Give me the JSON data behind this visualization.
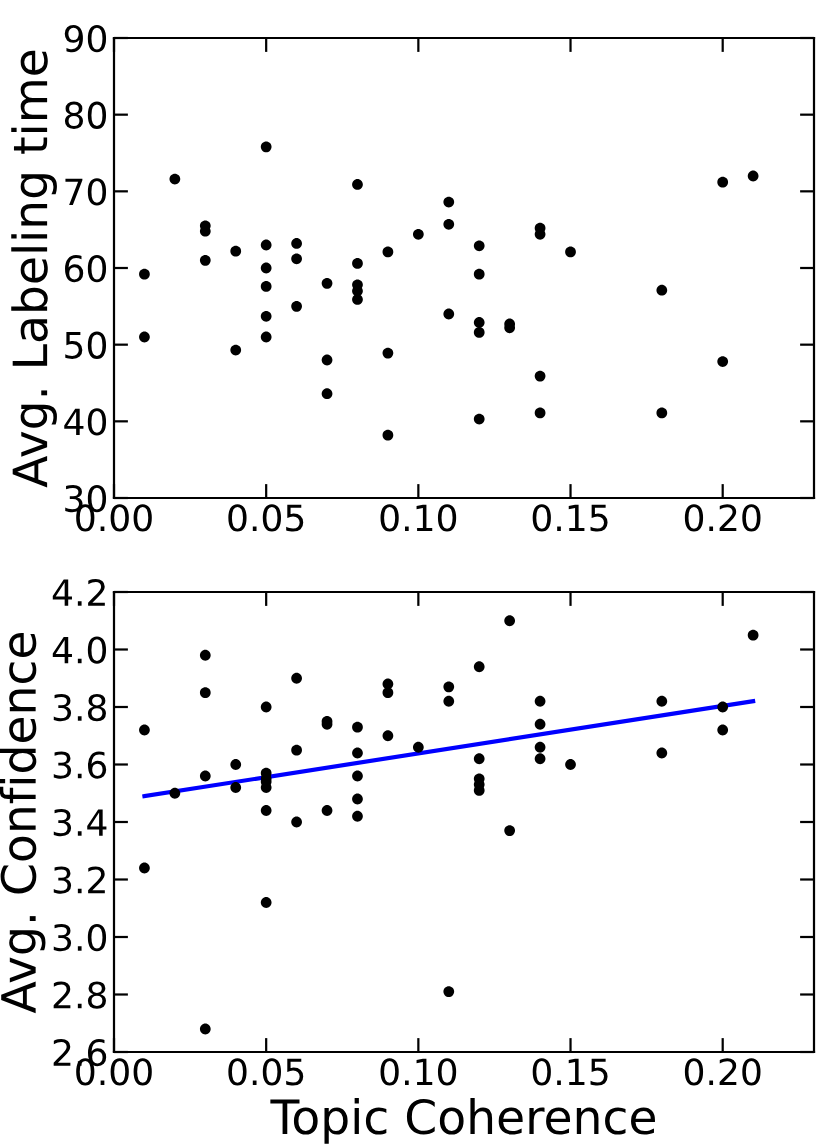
{
  "chart_data": [
    {
      "type": "scatter",
      "ylabel": "Avg. Labeling time",
      "xlim": [
        0,
        0.23
      ],
      "xticks": [
        {
          "value": 0,
          "label": "0.00"
        },
        {
          "value": 0.05,
          "label": "0.05"
        },
        {
          "value": 0.1,
          "label": "0.10"
        },
        {
          "value": 0.15,
          "label": "0.15"
        },
        {
          "value": 0.2,
          "label": "0.20"
        }
      ],
      "ylim": [
        30,
        90
      ],
      "yticks": [
        30,
        40,
        50,
        60,
        70,
        80,
        90
      ],
      "grid": false,
      "marker": "circle",
      "series": [
        {
          "color": "#000000",
          "x": [
            0.01,
            0.01,
            0.02,
            0.03,
            0.03,
            0.03,
            0.04,
            0.04,
            0.05,
            0.05,
            0.05,
            0.05,
            0.05,
            0.05,
            0.06,
            0.06,
            0.06,
            0.07,
            0.07,
            0.07,
            0.08,
            0.08,
            0.08,
            0.08,
            0.08,
            0.09,
            0.09,
            0.09,
            0.1,
            0.11,
            0.11,
            0.11,
            0.12,
            0.12,
            0.12,
            0.12,
            0.12,
            0.13,
            0.13,
            0.14,
            0.14,
            0.14,
            0.14,
            0.15,
            0.18,
            0.18,
            0.2,
            0.2,
            0.21
          ],
          "values": [
            59.2,
            51.0,
            71.6,
            65.5,
            64.8,
            61.0,
            62.2,
            49.3,
            75.8,
            63.0,
            60.0,
            57.6,
            53.7,
            51.0,
            63.2,
            61.2,
            55.0,
            58.0,
            48.0,
            43.6,
            70.9,
            60.6,
            57.8,
            57.0,
            55.9,
            62.1,
            48.9,
            38.2,
            64.4,
            68.6,
            65.7,
            54.0,
            62.9,
            59.2,
            52.9,
            51.6,
            40.3,
            52.7,
            52.2,
            65.2,
            64.4,
            45.9,
            41.1,
            62.1,
            57.1,
            41.1,
            71.2,
            47.8,
            72.0
          ]
        }
      ]
    },
    {
      "type": "scatter",
      "xlabel": "Topic Coherence",
      "ylabel": "Avg. Confidence",
      "xlim": [
        0,
        0.23
      ],
      "xticks": [
        {
          "value": 0,
          "label": "0.00"
        },
        {
          "value": 0.05,
          "label": "0.05"
        },
        {
          "value": 0.1,
          "label": "0.10"
        },
        {
          "value": 0.15,
          "label": "0.15"
        },
        {
          "value": 0.2,
          "label": "0.20"
        }
      ],
      "ylim": [
        2.6,
        4.2
      ],
      "yticks": [
        2.6,
        2.8,
        {
          "value": 3.0,
          "label": "3.0"
        },
        3.2,
        3.4,
        3.6,
        3.8,
        {
          "value": 4.0,
          "label": "4.0"
        },
        4.2
      ],
      "grid": false,
      "marker": "circle",
      "series": [
        {
          "color": "#000000",
          "x": [
            0.01,
            0.01,
            0.02,
            0.03,
            0.03,
            0.03,
            0.03,
            0.04,
            0.04,
            0.05,
            0.05,
            0.05,
            0.05,
            0.05,
            0.05,
            0.05,
            0.06,
            0.06,
            0.06,
            0.07,
            0.07,
            0.07,
            0.08,
            0.08,
            0.08,
            0.08,
            0.08,
            0.09,
            0.09,
            0.09,
            0.1,
            0.11,
            0.11,
            0.11,
            0.12,
            0.12,
            0.12,
            0.12,
            0.12,
            0.13,
            0.13,
            0.14,
            0.14,
            0.14,
            0.14,
            0.15,
            0.18,
            0.18,
            0.2,
            0.2,
            0.21
          ],
          "values": [
            3.72,
            3.24,
            3.5,
            3.98,
            3.85,
            3.56,
            2.68,
            3.6,
            3.52,
            3.8,
            3.57,
            3.55,
            3.54,
            3.52,
            3.44,
            3.12,
            3.9,
            3.65,
            3.4,
            3.75,
            3.74,
            3.44,
            3.73,
            3.64,
            3.56,
            3.48,
            3.42,
            3.88,
            3.85,
            3.7,
            3.66,
            3.87,
            3.82,
            2.81,
            3.94,
            3.62,
            3.55,
            3.53,
            3.51,
            4.1,
            3.37,
            3.82,
            3.74,
            3.66,
            3.62,
            3.6,
            3.82,
            3.64,
            3.8,
            3.72,
            4.05
          ]
        },
        {
          "type": "line",
          "color": "#0000ff",
          "x": [
            0.01,
            0.21
          ],
          "values": [
            3.49,
            3.82
          ],
          "marker": "none"
        }
      ]
    }
  ]
}
